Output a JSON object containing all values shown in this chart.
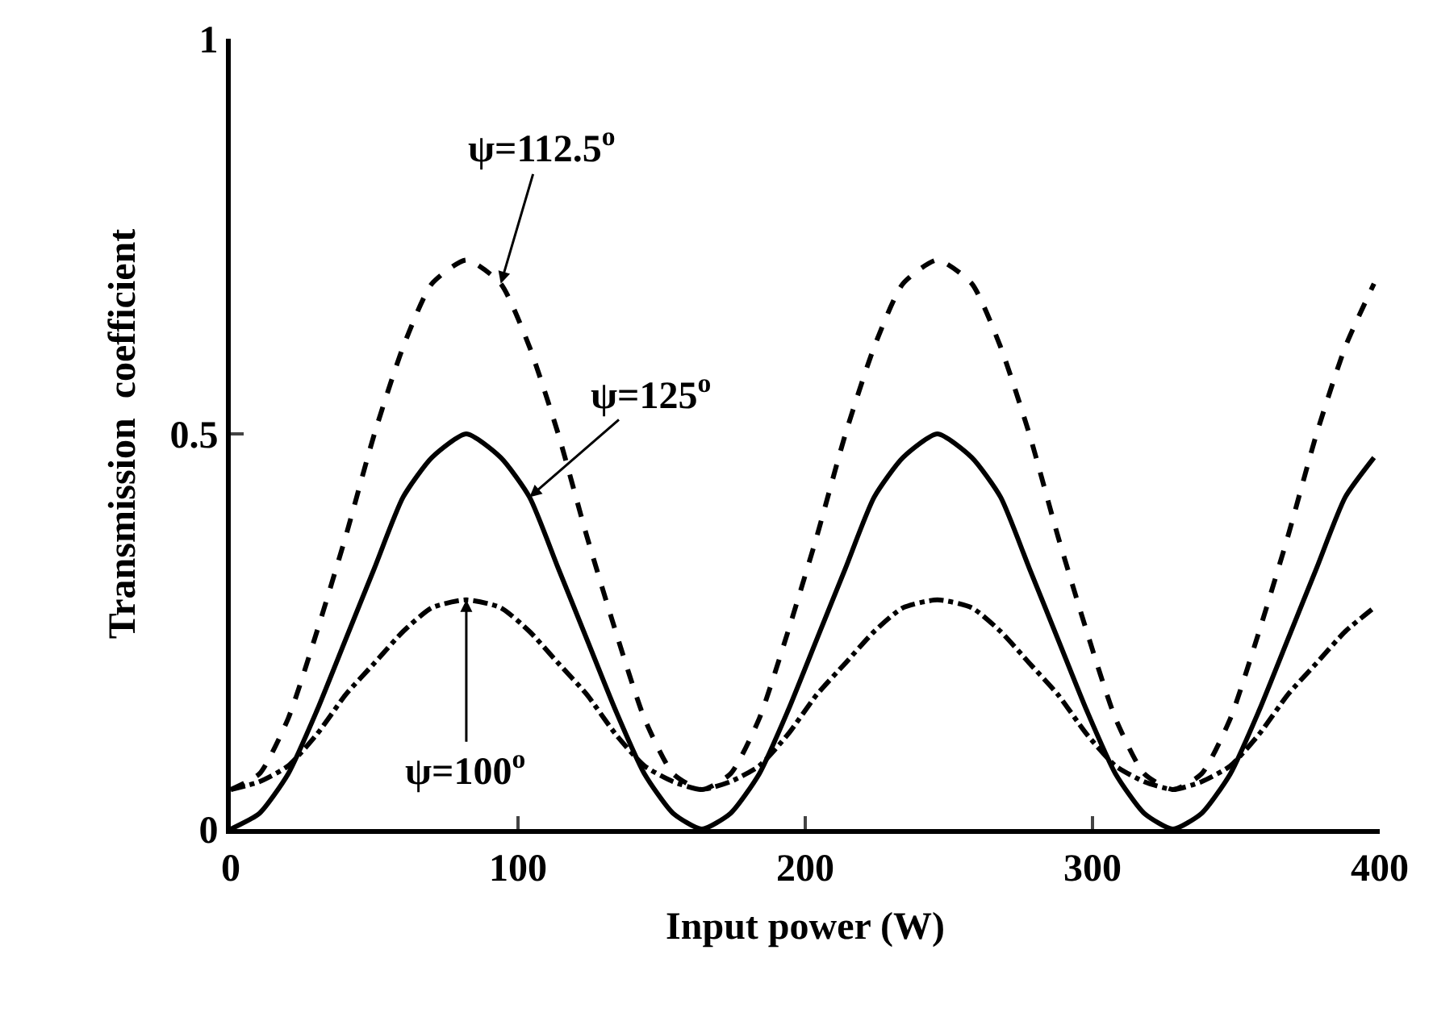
{
  "chart_data": {
    "type": "line",
    "xlabel": "Input power (W)",
    "ylabel": "Transmission  coefficient",
    "x": [
      0,
      10,
      20,
      30,
      40,
      50,
      60,
      70,
      82,
      94,
      104,
      114,
      124,
      134,
      144,
      154,
      164,
      174,
      184,
      194,
      204,
      214,
      224,
      234,
      246,
      258,
      268,
      278,
      288,
      298,
      308,
      318,
      328,
      338,
      348,
      358,
      368,
      378,
      388,
      398
    ],
    "series": [
      {
        "color": "#000000",
        "line_style": "dashed",
        "values": [
          0.05,
          0.07,
          0.14,
          0.25,
          0.37,
          0.5,
          0.61,
          0.69,
          0.72,
          0.69,
          0.61,
          0.5,
          0.37,
          0.25,
          0.14,
          0.07,
          0.05,
          0.07,
          0.14,
          0.25,
          0.37,
          0.5,
          0.61,
          0.69,
          0.72,
          0.69,
          0.61,
          0.5,
          0.37,
          0.25,
          0.14,
          0.07,
          0.05,
          0.07,
          0.14,
          0.25,
          0.37,
          0.5,
          0.61,
          0.69
        ]
      },
      {
        "color": "#000000",
        "line_style": "solid",
        "values": [
          0,
          0.02,
          0.07,
          0.15,
          0.24,
          0.33,
          0.42,
          0.47,
          0.5,
          0.47,
          0.42,
          0.33,
          0.24,
          0.15,
          0.07,
          0.02,
          0,
          0.02,
          0.07,
          0.15,
          0.24,
          0.33,
          0.42,
          0.47,
          0.5,
          0.47,
          0.42,
          0.33,
          0.24,
          0.15,
          0.07,
          0.02,
          0,
          0.02,
          0.07,
          0.15,
          0.24,
          0.33,
          0.42,
          0.47
        ]
      },
      {
        "color": "#000000",
        "line_style": "dashdot",
        "values": [
          0.05,
          0.06,
          0.08,
          0.12,
          0.17,
          0.21,
          0.25,
          0.28,
          0.29,
          0.28,
          0.25,
          0.21,
          0.17,
          0.12,
          0.08,
          0.06,
          0.05,
          0.06,
          0.08,
          0.12,
          0.17,
          0.21,
          0.25,
          0.28,
          0.29,
          0.28,
          0.25,
          0.21,
          0.17,
          0.12,
          0.08,
          0.06,
          0.05,
          0.06,
          0.08,
          0.12,
          0.17,
          0.21,
          0.25,
          0.28
        ]
      }
    ],
    "xlim": [
      0,
      400
    ],
    "xticks": [
      0,
      100,
      200,
      300,
      400
    ],
    "ylim": [
      0,
      1
    ],
    "yticks": [
      0,
      {
        "value": 0.5,
        "label": "0.5"
      },
      1
    ],
    "marker": "none",
    "annotations": [
      {
        "text": "ψ=112.5$^{o}$",
        "x": 94,
        "y": 0.69
      },
      {
        "text": "ψ=125$^{o}$",
        "x": 104,
        "y": 0.42
      },
      {
        "text": "ψ=100$^{o}$",
        "x": 82,
        "y": 0.29
      }
    ]
  }
}
